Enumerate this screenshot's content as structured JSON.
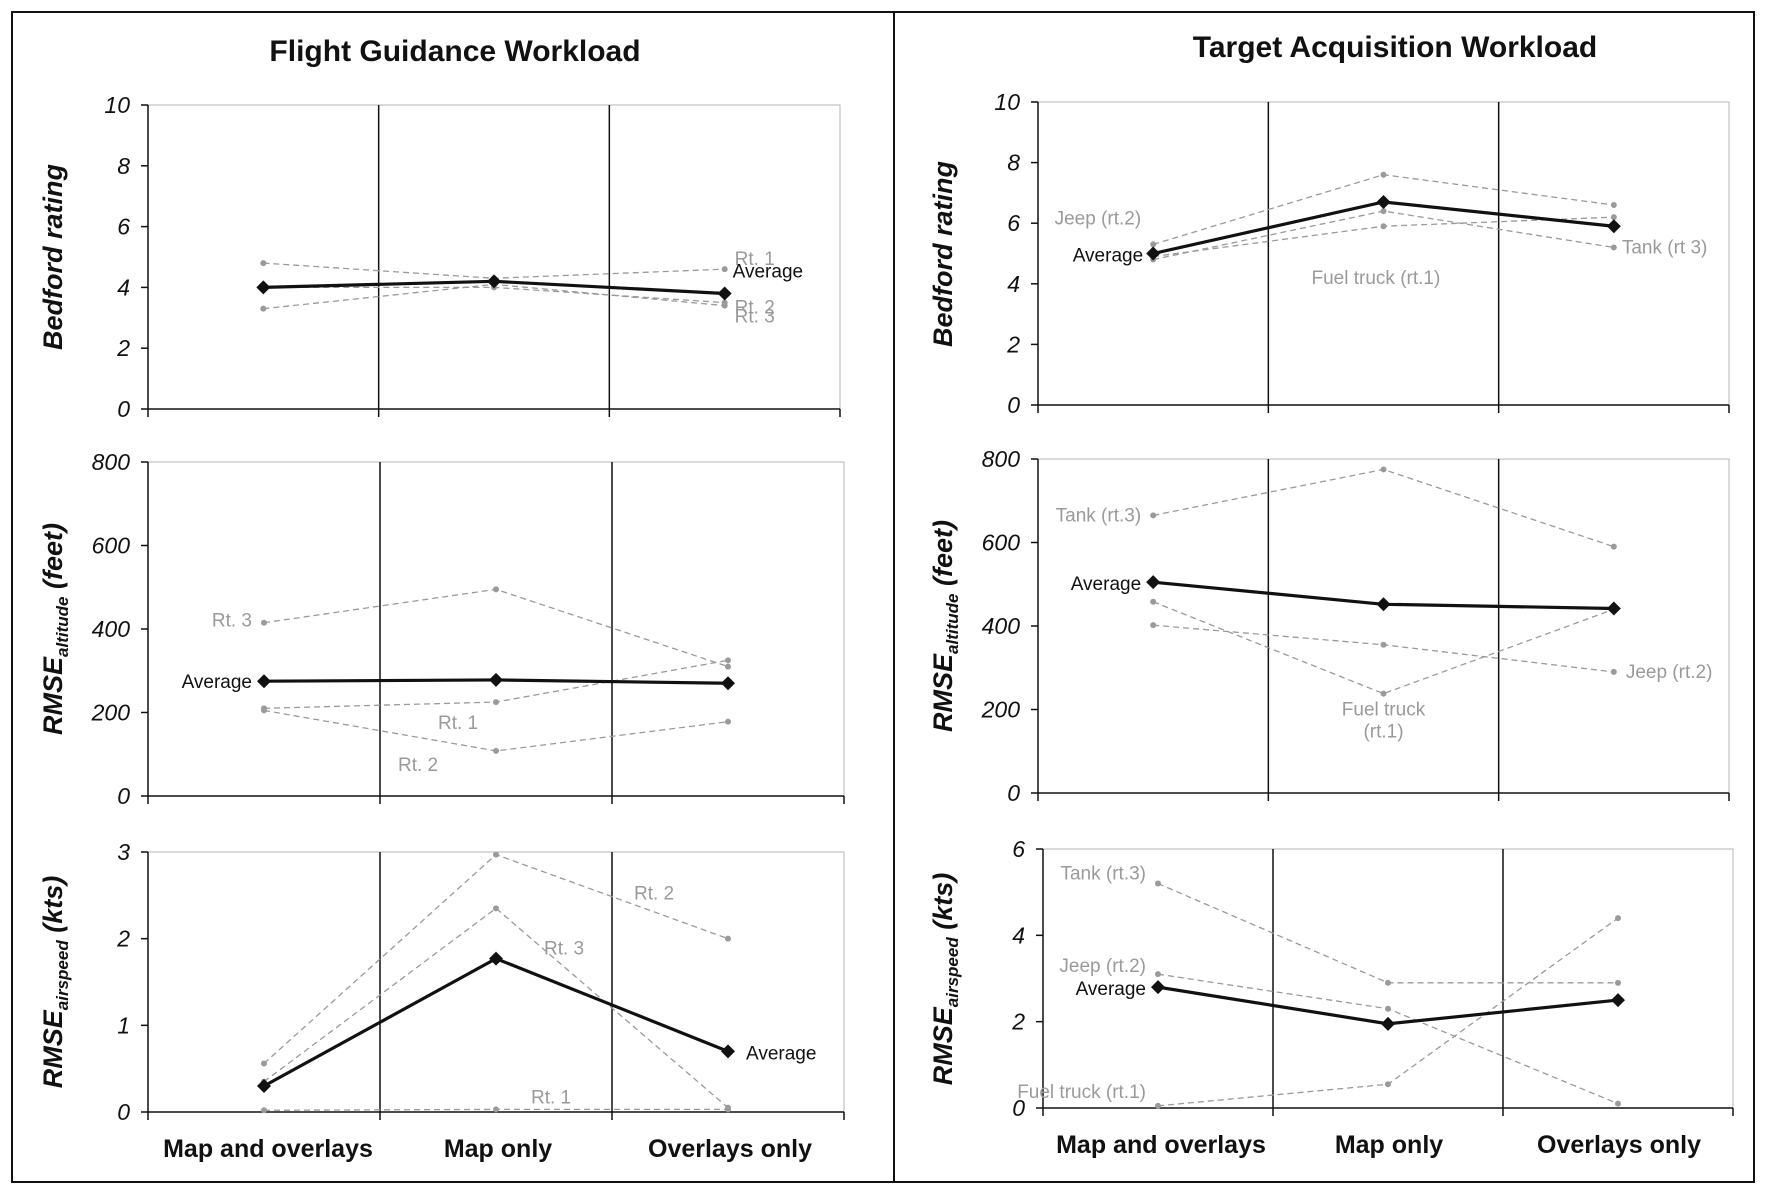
{
  "panels": [
    {
      "title": "Flight Guidance Workload",
      "categories": [
        "Map and overlays",
        "Map only",
        "Overlays only"
      ]
    },
    {
      "title": "Target Acquisition Workload",
      "categories": [
        "Map and overlays",
        "Map only",
        "Overlays only"
      ]
    }
  ],
  "chart_data": [
    {
      "type": "line",
      "panel": "Flight Guidance Workload",
      "ylabel": "Bedford rating",
      "categories": [
        "Map and overlays",
        "Map only",
        "Overlays only"
      ],
      "ylim": [
        0,
        10
      ],
      "yticks": [
        0,
        2,
        4,
        6,
        8,
        10
      ],
      "series": [
        {
          "name": "Average",
          "values": [
            4.0,
            4.2,
            3.8
          ],
          "average": true
        },
        {
          "name": "Rt. 1",
          "values": [
            4.8,
            4.3,
            4.6
          ]
        },
        {
          "name": "Rt. 2",
          "values": [
            3.3,
            4.1,
            3.4
          ]
        },
        {
          "name": "Rt. 3",
          "values": [
            4.0,
            4.0,
            3.5
          ]
        }
      ]
    },
    {
      "type": "line",
      "panel": "Flight Guidance Workload",
      "ylabel": "RMSE",
      "ylabel_sub": "altitude",
      "ylabel_unit": "(feet)",
      "categories": [
        "Map and overlays",
        "Map only",
        "Overlays only"
      ],
      "ylim": [
        0,
        800
      ],
      "yticks": [
        0,
        200,
        400,
        600,
        800
      ],
      "series": [
        {
          "name": "Average",
          "values": [
            275,
            278,
            270
          ],
          "average": true
        },
        {
          "name": "Rt. 1",
          "values": [
            210,
            225,
            325
          ]
        },
        {
          "name": "Rt. 2",
          "values": [
            205,
            108,
            178
          ]
        },
        {
          "name": "Rt. 3",
          "values": [
            415,
            495,
            310
          ]
        }
      ]
    },
    {
      "type": "line",
      "panel": "Flight Guidance Workload",
      "ylabel": "RMSE",
      "ylabel_sub": "airspeed",
      "ylabel_unit": "(kts)",
      "categories": [
        "Map and overlays",
        "Map only",
        "Overlays only"
      ],
      "ylim": [
        0,
        3
      ],
      "yticks": [
        0,
        1,
        2,
        3
      ],
      "series": [
        {
          "name": "Average",
          "values": [
            0.3,
            1.77,
            0.7
          ],
          "average": true
        },
        {
          "name": "Rt. 1",
          "values": [
            0.02,
            0.03,
            0.03
          ]
        },
        {
          "name": "Rt. 2",
          "values": [
            0.56,
            2.97,
            2.0
          ]
        },
        {
          "name": "Rt. 3",
          "values": [
            0.35,
            2.35,
            0.05
          ]
        }
      ]
    },
    {
      "type": "line",
      "panel": "Target Acquisition Workload",
      "ylabel": "Bedford rating",
      "categories": [
        "Map and overlays",
        "Map only",
        "Overlays only"
      ],
      "ylim": [
        0,
        10
      ],
      "yticks": [
        0,
        2,
        4,
        6,
        8,
        10
      ],
      "series": [
        {
          "name": "Average",
          "values": [
            5.0,
            6.7,
            5.9
          ],
          "average": true
        },
        {
          "name": "Fuel truck (rt.1)",
          "values": [
            4.9,
            5.9,
            6.2
          ]
        },
        {
          "name": "Jeep (rt.2)",
          "values": [
            5.3,
            7.6,
            6.6
          ]
        },
        {
          "name": "Tank (rt 3)",
          "values": [
            4.8,
            6.4,
            5.2
          ]
        }
      ]
    },
    {
      "type": "line",
      "panel": "Target Acquisition Workload",
      "ylabel": "RMSE",
      "ylabel_sub": "altitude",
      "ylabel_unit": "(feet)",
      "categories": [
        "Map and overlays",
        "Map only",
        "Overlays only"
      ],
      "ylim": [
        0,
        800
      ],
      "yticks": [
        0,
        200,
        400,
        600,
        800
      ],
      "series": [
        {
          "name": "Average",
          "values": [
            505,
            452,
            442
          ],
          "average": true
        },
        {
          "name": "Fuel truck (rt.1)",
          "values": [
            458,
            238,
            440
          ]
        },
        {
          "name": "Jeep (rt.2)",
          "values": [
            402,
            355,
            290
          ]
        },
        {
          "name": "Tank (rt.3)",
          "values": [
            665,
            775,
            590
          ]
        }
      ]
    },
    {
      "type": "line",
      "panel": "Target Acquisition Workload",
      "ylabel": "RMSE",
      "ylabel_sub": "airspeed",
      "ylabel_unit": "(kts)",
      "categories": [
        "Map and overlays",
        "Map only",
        "Overlays only"
      ],
      "ylim": [
        0,
        6
      ],
      "yticks": [
        0,
        2,
        4,
        6
      ],
      "series": [
        {
          "name": "Average",
          "values": [
            2.8,
            1.95,
            2.5
          ],
          "average": true
        },
        {
          "name": "Fuel truck (rt.1)",
          "values": [
            0.05,
            0.55,
            4.4
          ]
        },
        {
          "name": "Jeep (rt.2)",
          "values": [
            3.1,
            2.3,
            0.1
          ]
        },
        {
          "name": "Tank (rt.3)",
          "values": [
            5.2,
            2.9,
            2.9
          ]
        }
      ]
    }
  ]
}
